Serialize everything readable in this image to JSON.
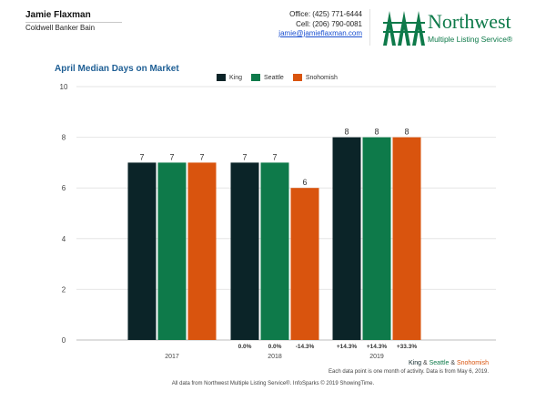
{
  "agent": {
    "name": "Jamie Flaxman",
    "brokerage": "Coldwell Banker Bain",
    "office": "Office: (425) 771-6444",
    "cell": "Cell: (206) 790-0081",
    "email": "jamie@jamieflaxman.com"
  },
  "logo": {
    "word": "Northwest",
    "tagline": "Multiple Listing Service®",
    "icon": "three-trees-logo-icon"
  },
  "colors": {
    "king": "#0b2428",
    "seattle": "#0e7a4a",
    "snohomish": "#d9540e",
    "title": "#1f5f95"
  },
  "chart_data": {
    "type": "bar",
    "title": "April Median Days on Market",
    "xlabel": "",
    "ylabel": "",
    "ylim": [
      0,
      10
    ],
    "yticks": [
      0,
      2,
      4,
      6,
      8,
      10
    ],
    "grid": true,
    "legend_position": "top",
    "categories": [
      "2017",
      "2018",
      "2019"
    ],
    "series": [
      {
        "name": "King",
        "values": [
          7,
          7,
          8
        ],
        "changes": [
          "",
          "0.0%",
          "+14.3%"
        ]
      },
      {
        "name": "Seattle",
        "values": [
          7,
          7,
          8
        ],
        "changes": [
          "",
          "0.0%",
          "+14.3%"
        ]
      },
      {
        "name": "Snohomish",
        "values": [
          7,
          6,
          8
        ],
        "changes": [
          "",
          "-14.3%",
          "+33.3%"
        ]
      }
    ]
  },
  "footer": {
    "legend_king": "King",
    "legend_amp1": " & ",
    "legend_seattle": "Seattle",
    "legend_amp2": " & ",
    "legend_snohomish": "Snohomish",
    "note": "Each data point is one month of activity. Data is from May 6, 2019.",
    "credit": "All data from Northwest Multiple Listing Service®. InfoSparks © 2019 ShowingTime."
  }
}
